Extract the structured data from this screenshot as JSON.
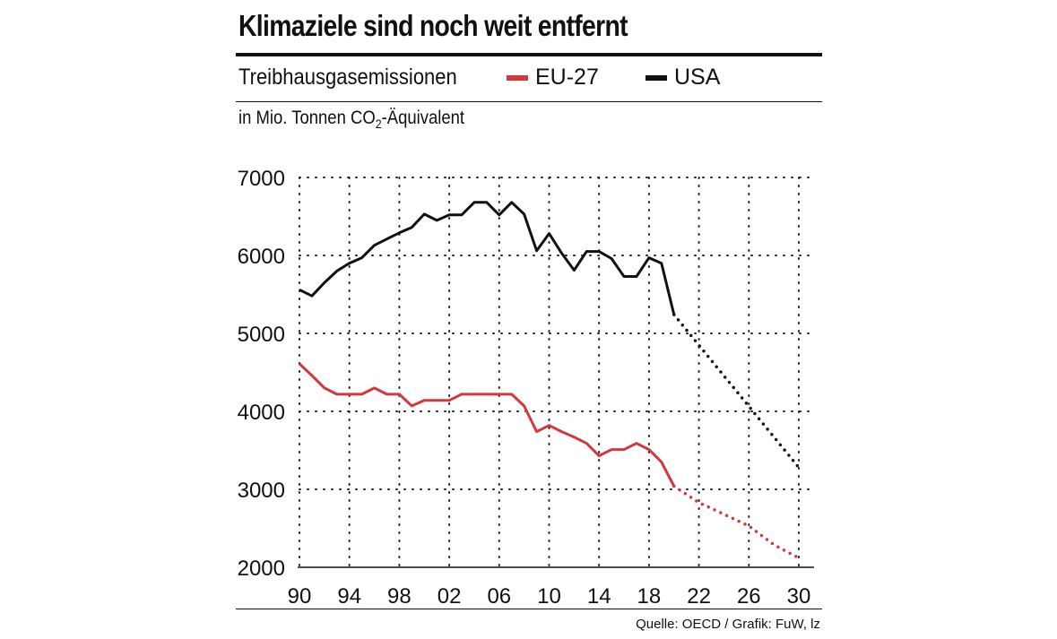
{
  "header": {
    "title": "Klimaziele sind noch weit entfernt",
    "subtitle": "Treibhausgasemissionen",
    "unit_prefix": "in Mio. Tonnen CO",
    "unit_sub": "2",
    "unit_suffix": "-Äquivalent"
  },
  "legend": [
    {
      "label": "EU-27",
      "color": "#d2393f"
    },
    {
      "label": "USA",
      "color": "#111111"
    }
  ],
  "footer": {
    "source": "Quelle: OECD  / Grafik: FuW, lz"
  },
  "chart_data": {
    "type": "line",
    "title": "Klimaziele sind noch weit entfernt",
    "ylabel": "in Mio. Tonnen CO2-Äquivalent",
    "ylim": [
      2000,
      7000
    ],
    "xlim": [
      1990,
      2031
    ],
    "y_ticks": [
      7000,
      6000,
      5000,
      4000,
      3000,
      2000
    ],
    "x_ticks": [
      1990,
      1994,
      1998,
      2002,
      2006,
      2010,
      2014,
      2018,
      2022,
      2026,
      2030
    ],
    "x_tick_labels": [
      "90",
      "94",
      "98",
      "02",
      "06",
      "10",
      "14",
      "18",
      "22",
      "26",
      "30"
    ],
    "grid": true,
    "series": [
      {
        "name": "USA",
        "color": "#111111",
        "x": [
          1990,
          1991,
          1992,
          1993,
          1994,
          1995,
          1996,
          1997,
          1998,
          1999,
          2000,
          2001,
          2002,
          2003,
          2004,
          2005,
          2006,
          2007,
          2008,
          2009,
          2010,
          2011,
          2012,
          2013,
          2014,
          2015,
          2016,
          2017,
          2018,
          2019,
          2020
        ],
        "values": [
          5560,
          5480,
          5650,
          5800,
          5900,
          5970,
          6130,
          6210,
          6290,
          6360,
          6530,
          6450,
          6520,
          6520,
          6680,
          6680,
          6520,
          6680,
          6530,
          6060,
          6280,
          6030,
          5810,
          6050,
          6050,
          5960,
          5730,
          5730,
          5970,
          5900,
          5240
        ],
        "projection": {
          "x": [
            2020,
            2030
          ],
          "values": [
            5240,
            3280
          ]
        }
      },
      {
        "name": "EU-27",
        "color": "#d2393f",
        "x": [
          1990,
          1991,
          1992,
          1993,
          1994,
          1995,
          1996,
          1997,
          1998,
          1999,
          2000,
          2001,
          2002,
          2003,
          2004,
          2005,
          2006,
          2007,
          2008,
          2009,
          2010,
          2011,
          2012,
          2013,
          2014,
          2015,
          2016,
          2017,
          2018,
          2019,
          2020
        ],
        "values": [
          4610,
          4460,
          4300,
          4220,
          4220,
          4220,
          4300,
          4220,
          4220,
          4070,
          4140,
          4140,
          4140,
          4220,
          4220,
          4220,
          4220,
          4220,
          4070,
          3740,
          3820,
          3740,
          3670,
          3590,
          3430,
          3510,
          3510,
          3590,
          3510,
          3350,
          3040
        ],
        "projection": {
          "x": [
            2020,
            2022,
            2024,
            2026,
            2028,
            2030
          ],
          "values": [
            3040,
            2830,
            2680,
            2530,
            2290,
            2120
          ]
        }
      }
    ]
  }
}
